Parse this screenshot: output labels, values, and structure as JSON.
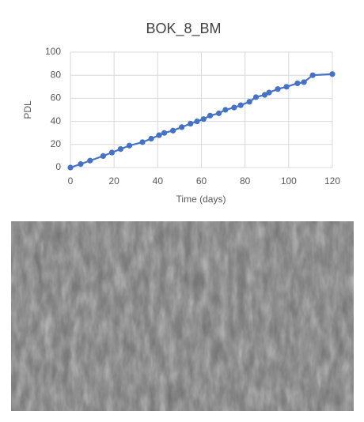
{
  "chart_data": {
    "type": "line",
    "title": "BOK_8_BM",
    "x_label": "Time (days)",
    "y_label": "PDL",
    "x": [
      0,
      4.7,
      9,
      15,
      19,
      23,
      27,
      33,
      37,
      40.6,
      43,
      47,
      51,
      55,
      58,
      61,
      64,
      68,
      71,
      75,
      78,
      82,
      85,
      89,
      91,
      95,
      99,
      104,
      107,
      111,
      120
    ],
    "series": [
      {
        "name": "PDL",
        "color": "#4472c4",
        "values": [
          0,
          3,
          6,
          10,
          13,
          16,
          19,
          22,
          25,
          28,
          30,
          32,
          35,
          38,
          40,
          42,
          45,
          47,
          50,
          52,
          54,
          57,
          61,
          63,
          65,
          68,
          70,
          73,
          74,
          80,
          81
        ]
      }
    ],
    "xlim": [
      0,
      120
    ],
    "xticks": [
      0,
      20,
      40,
      60,
      80,
      100,
      120
    ],
    "ylim": [
      0,
      100
    ],
    "yticks": [
      0,
      20,
      40,
      60,
      80,
      100
    ],
    "grid": true
  }
}
